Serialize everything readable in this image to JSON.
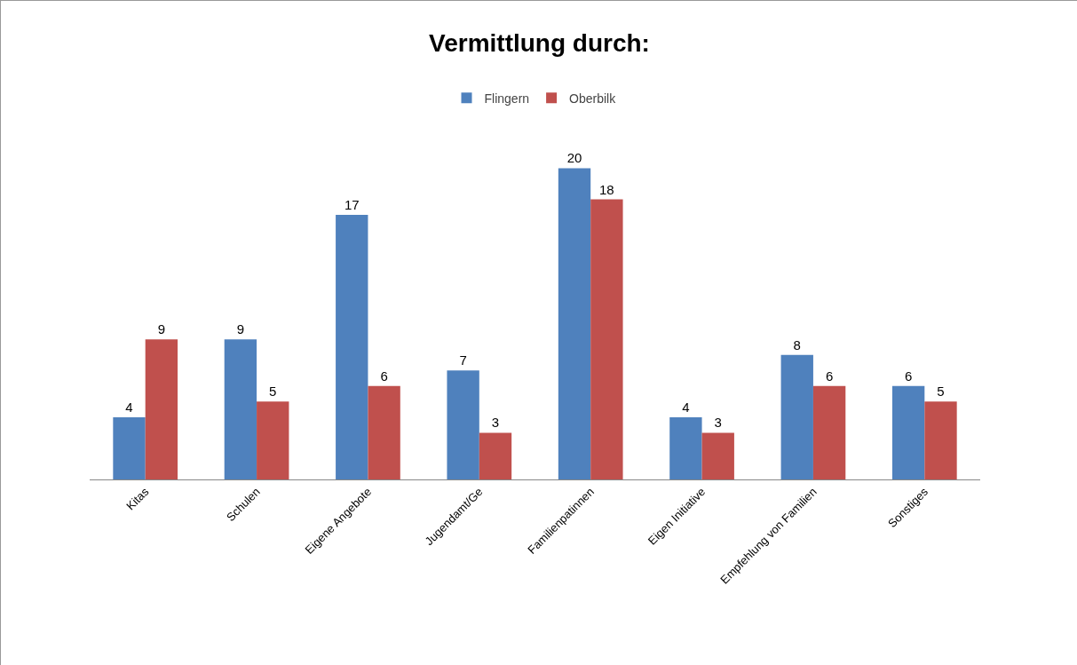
{
  "chart_data": {
    "type": "bar",
    "title": "Vermittlung durch:",
    "categories": [
      "Kitas",
      "Schulen",
      "Eigene Angebote",
      "Jugendamt/Ge",
      "Familienpatinnen",
      "Eigen Initiative",
      "Empfehlung von Familien",
      "Sonstiges"
    ],
    "series": [
      {
        "name": "Flingern",
        "color": "#4f81bd",
        "values": [
          4,
          9,
          17,
          7,
          20,
          4,
          8,
          6
        ]
      },
      {
        "name": "Oberbilk",
        "color": "#c0504d",
        "values": [
          9,
          5,
          6,
          3,
          18,
          3,
          6,
          5
        ]
      }
    ],
    "data_labels": true,
    "legend": "top",
    "grid": false
  }
}
